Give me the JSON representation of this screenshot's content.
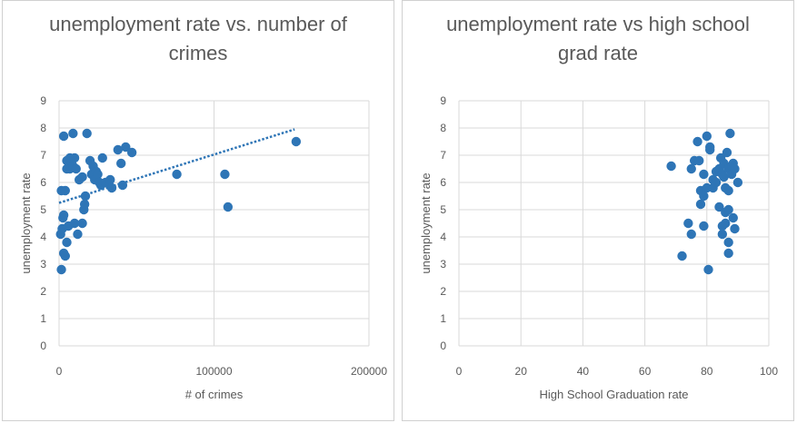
{
  "chart_data": [
    {
      "type": "scatter",
      "title_lines": [
        "unemployment rate vs. number of",
        "crimes"
      ],
      "xlabel": "# of crimes",
      "ylabel": "unemployment rate",
      "xlim": [
        0,
        200000
      ],
      "ylim": [
        0,
        9
      ],
      "xticks": [
        0,
        100000,
        200000
      ],
      "yticks": [
        0,
        1,
        2,
        3,
        4,
        5,
        6,
        7,
        8,
        9
      ],
      "grid": true,
      "trendline": {
        "type": "linear",
        "style": "dotted",
        "x": [
          0,
          152000
        ],
        "y": [
          5.25,
          7.95
        ]
      },
      "color": "#2E75B6",
      "points": [
        [
          1500,
          2.8
        ],
        [
          3000,
          3.4
        ],
        [
          4000,
          3.3
        ],
        [
          5000,
          3.8
        ],
        [
          1000,
          4.1
        ],
        [
          2000,
          4.3
        ],
        [
          2500,
          4.7
        ],
        [
          3000,
          4.8
        ],
        [
          6000,
          4.4
        ],
        [
          10000,
          4.5
        ],
        [
          15000,
          4.5
        ],
        [
          12000,
          4.1
        ],
        [
          1500,
          5.7
        ],
        [
          4000,
          5.7
        ],
        [
          16000,
          5.0
        ],
        [
          16500,
          5.2
        ],
        [
          17000,
          5.5
        ],
        [
          3000,
          7.7
        ],
        [
          9000,
          7.8
        ],
        [
          18000,
          7.8
        ],
        [
          5000,
          6.8
        ],
        [
          7000,
          6.9
        ],
        [
          8000,
          6.7
        ],
        [
          10000,
          6.9
        ],
        [
          5000,
          6.5
        ],
        [
          7000,
          6.5
        ],
        [
          9000,
          6.6
        ],
        [
          11000,
          6.5
        ],
        [
          13000,
          6.1
        ],
        [
          15000,
          6.2
        ],
        [
          20000,
          6.8
        ],
        [
          21000,
          6.3
        ],
        [
          22000,
          6.6
        ],
        [
          23000,
          6.1
        ],
        [
          24000,
          6.4
        ],
        [
          25000,
          6.3
        ],
        [
          26000,
          6.0
        ],
        [
          27000,
          5.9
        ],
        [
          28000,
          6.9
        ],
        [
          30000,
          6.0
        ],
        [
          33000,
          6.1
        ],
        [
          34000,
          5.8
        ],
        [
          38000,
          7.2
        ],
        [
          40000,
          6.7
        ],
        [
          41000,
          5.9
        ],
        [
          43000,
          7.3
        ],
        [
          47000,
          7.1
        ],
        [
          76000,
          6.3
        ],
        [
          107000,
          6.3
        ],
        [
          109000,
          5.1
        ],
        [
          153000,
          7.5
        ]
      ]
    },
    {
      "type": "scatter",
      "title_lines": [
        "unemployment rate vs high school",
        "grad rate"
      ],
      "xlabel": "High School Graduation rate",
      "ylabel": "unemployment rate",
      "xlim": [
        0,
        100
      ],
      "ylim": [
        0,
        9
      ],
      "xticks": [
        0,
        20,
        40,
        60,
        80,
        100
      ],
      "yticks": [
        0,
        1,
        2,
        3,
        4,
        5,
        6,
        7,
        8,
        9
      ],
      "grid": true,
      "color": "#2E75B6",
      "points": [
        [
          68.5,
          6.6
        ],
        [
          72,
          3.3
        ],
        [
          74,
          4.5
        ],
        [
          75,
          4.1
        ],
        [
          75,
          6.5
        ],
        [
          76,
          6.8
        ],
        [
          77,
          7.5
        ],
        [
          77.5,
          6.8
        ],
        [
          78,
          5.7
        ],
        [
          78,
          5.2
        ],
        [
          79,
          4.4
        ],
        [
          79,
          5.5
        ],
        [
          79,
          6.3
        ],
        [
          80,
          7.7
        ],
        [
          80,
          5.8
        ],
        [
          80.5,
          2.8
        ],
        [
          81,
          7.2
        ],
        [
          81,
          7.3
        ],
        [
          82,
          6.1
        ],
        [
          82,
          5.8
        ],
        [
          83,
          6.0
        ],
        [
          83,
          6.4
        ],
        [
          84,
          5.1
        ],
        [
          84,
          6.5
        ],
        [
          84.5,
          6.9
        ],
        [
          85,
          6.3
        ],
        [
          85,
          4.4
        ],
        [
          85,
          4.1
        ],
        [
          85.5,
          6.7
        ],
        [
          85.5,
          6.2
        ],
        [
          86,
          4.9
        ],
        [
          86,
          5.8
        ],
        [
          86,
          4.5
        ],
        [
          86.5,
          7.1
        ],
        [
          87,
          5.0
        ],
        [
          87,
          6.5
        ],
        [
          87,
          5.7
        ],
        [
          87,
          3.8
        ],
        [
          87,
          3.4
        ],
        [
          87.5,
          7.8
        ],
        [
          88,
          6.3
        ],
        [
          88,
          6.6
        ],
        [
          88.5,
          4.7
        ],
        [
          88.5,
          6.7
        ],
        [
          89,
          4.3
        ],
        [
          89,
          6.5
        ],
        [
          90,
          6.0
        ]
      ]
    }
  ]
}
